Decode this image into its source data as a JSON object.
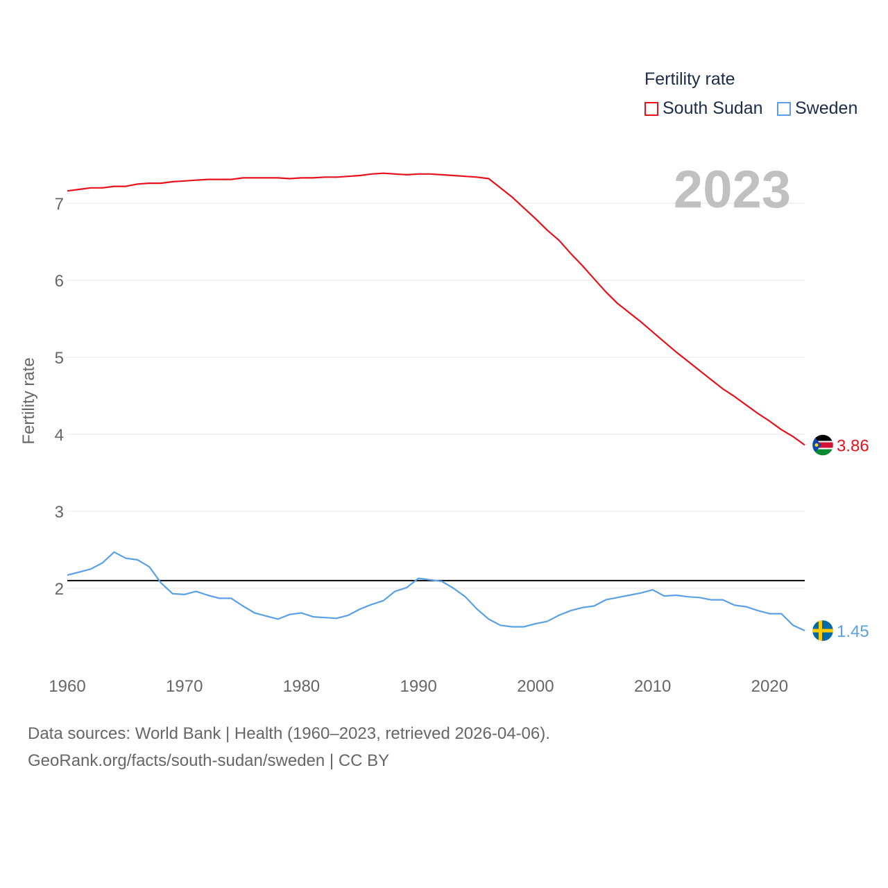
{
  "chart_data": {
    "type": "line",
    "ylabel": "Fertility rate",
    "xlabel": "",
    "xlim": [
      1960,
      2023
    ],
    "ylim": [
      1.1,
      7.8
    ],
    "x_ticks": [
      1960,
      1970,
      1980,
      1990,
      2000,
      2010,
      2020
    ],
    "y_ticks": [
      2,
      3,
      4,
      5,
      6,
      7
    ],
    "grid": true,
    "reference_line": {
      "y": 2.1,
      "color": "#000000"
    },
    "legend": {
      "title": "Fertility rate",
      "position": "top-right"
    },
    "current_year": "2023",
    "x": [
      1960,
      1961,
      1962,
      1963,
      1964,
      1965,
      1966,
      1967,
      1968,
      1969,
      1970,
      1971,
      1972,
      1973,
      1974,
      1975,
      1976,
      1977,
      1978,
      1979,
      1980,
      1981,
      1982,
      1983,
      1984,
      1985,
      1986,
      1987,
      1988,
      1989,
      1990,
      1991,
      1992,
      1993,
      1994,
      1995,
      1996,
      1997,
      1998,
      1999,
      2000,
      2001,
      2002,
      2003,
      2004,
      2005,
      2006,
      2007,
      2008,
      2009,
      2010,
      2011,
      2012,
      2013,
      2014,
      2015,
      2016,
      2017,
      2018,
      2019,
      2020,
      2021,
      2022,
      2023
    ],
    "series": [
      {
        "name": "South Sudan",
        "color": "#e8111b",
        "end_label": "3.86",
        "flag": "south-sudan-flag-icon",
        "values": [
          7.16,
          7.18,
          7.2,
          7.2,
          7.22,
          7.22,
          7.25,
          7.26,
          7.26,
          7.28,
          7.29,
          7.3,
          7.31,
          7.31,
          7.31,
          7.33,
          7.33,
          7.33,
          7.33,
          7.32,
          7.33,
          7.33,
          7.34,
          7.34,
          7.35,
          7.36,
          7.38,
          7.39,
          7.38,
          7.37,
          7.38,
          7.38,
          7.37,
          7.36,
          7.35,
          7.34,
          7.32,
          7.2,
          7.08,
          6.94,
          6.8,
          6.65,
          6.52,
          6.35,
          6.19,
          6.02,
          5.85,
          5.7,
          5.58,
          5.46,
          5.33,
          5.2,
          5.07,
          4.95,
          4.83,
          4.71,
          4.59,
          4.49,
          4.38,
          4.27,
          4.17,
          4.06,
          3.97,
          3.86
        ]
      },
      {
        "name": "Sweden",
        "color": "#5aa0e6",
        "end_label": "1.45",
        "flag": "sweden-flag-icon",
        "values": [
          2.17,
          2.21,
          2.25,
          2.33,
          2.47,
          2.39,
          2.37,
          2.28,
          2.07,
          1.93,
          1.92,
          1.96,
          1.91,
          1.87,
          1.87,
          1.77,
          1.68,
          1.64,
          1.6,
          1.66,
          1.68,
          1.63,
          1.62,
          1.61,
          1.65,
          1.73,
          1.79,
          1.84,
          1.96,
          2.01,
          2.13,
          2.11,
          2.09,
          2.0,
          1.89,
          1.73,
          1.6,
          1.52,
          1.5,
          1.5,
          1.54,
          1.57,
          1.65,
          1.71,
          1.75,
          1.77,
          1.85,
          1.88,
          1.91,
          1.94,
          1.98,
          1.9,
          1.91,
          1.89,
          1.88,
          1.85,
          1.85,
          1.78,
          1.76,
          1.71,
          1.67,
          1.67,
          1.52,
          1.45
        ]
      }
    ]
  },
  "legend": {
    "title": "Fertility rate",
    "items": [
      {
        "label": "South Sudan",
        "color": "#e8111b"
      },
      {
        "label": "Sweden",
        "color": "#5aa0e6"
      }
    ]
  },
  "year_label": "2023",
  "footer": {
    "line1": "Data sources: World Bank | Health (1960–2023, retrieved 2026-04-06).",
    "line2": "GeoRank.org/facts/south-sudan/sweden | CC BY"
  }
}
